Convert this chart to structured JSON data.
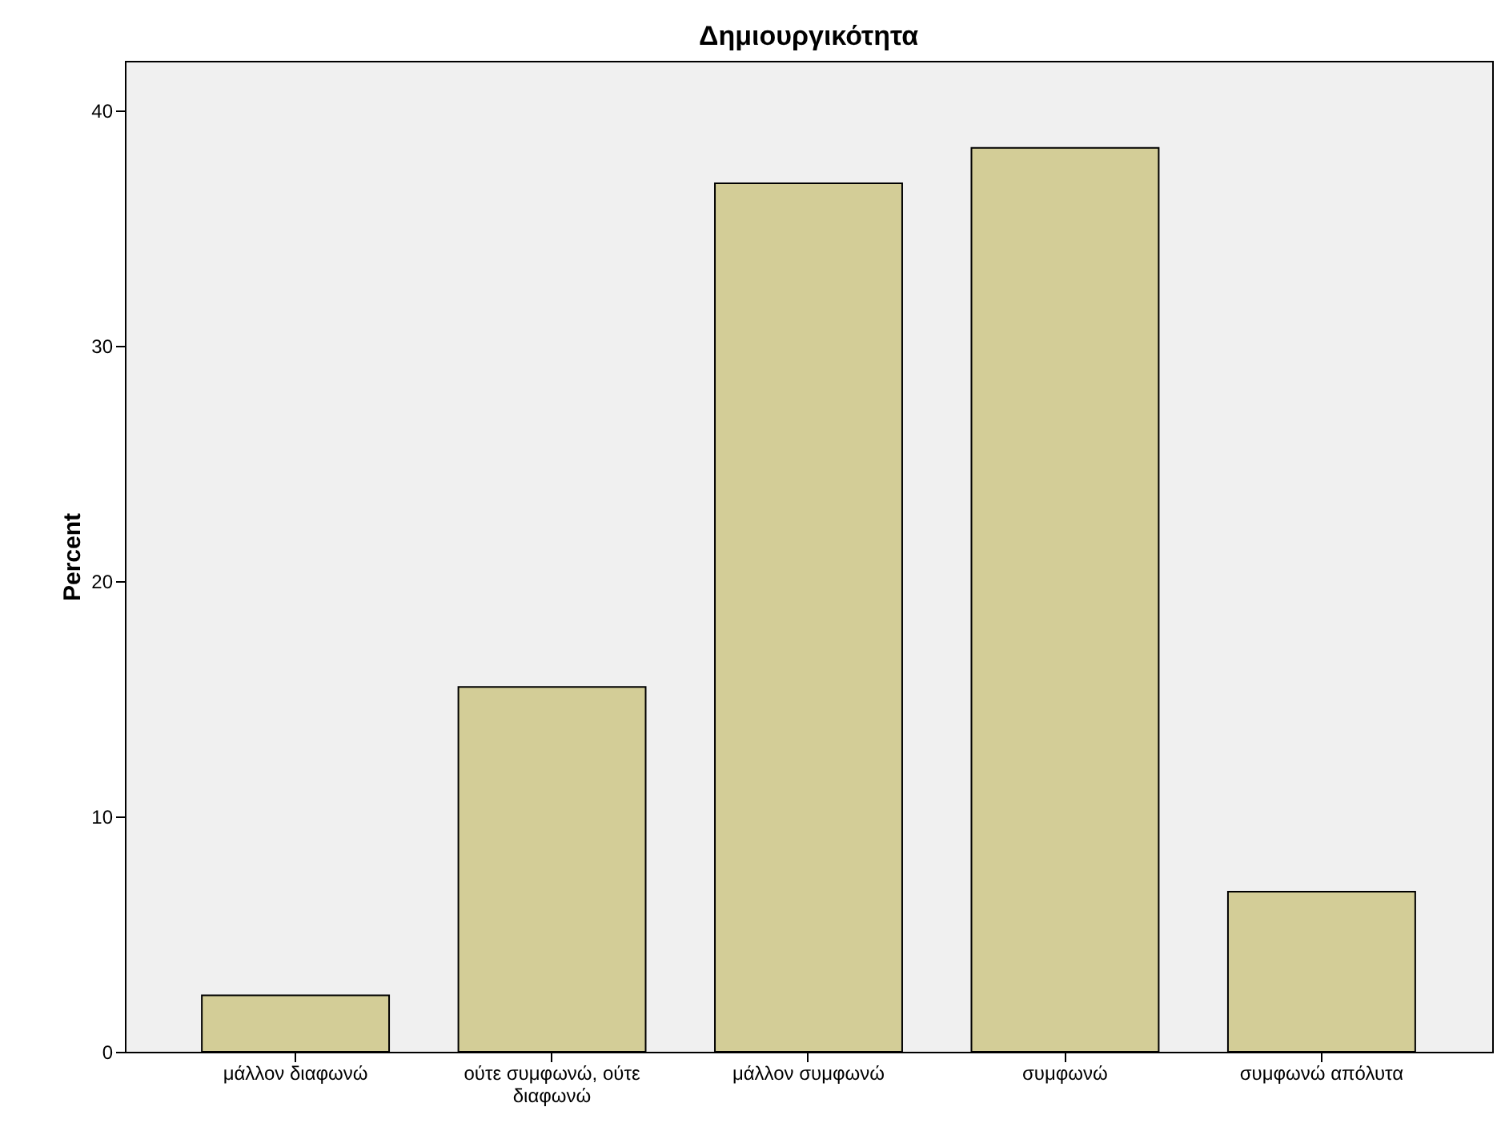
{
  "chart_data": {
    "type": "bar",
    "title": "Δημιουργικότητα",
    "ylabel": "Percent",
    "categories": [
      "μάλλον διαφωνώ",
      "ούτε συμφωνώ, ούτε διαφωνώ",
      "μάλλον συμφωνώ",
      "συμφωνώ",
      "συμφωνώ απόλυτα"
    ],
    "values": [
      2.4,
      15.5,
      36.9,
      38.4,
      6.8
    ],
    "color": "#d3cd97",
    "ylim": [
      0,
      42.1
    ],
    "yticks": [
      0,
      10,
      20,
      30,
      40
    ],
    "grid": false
  }
}
